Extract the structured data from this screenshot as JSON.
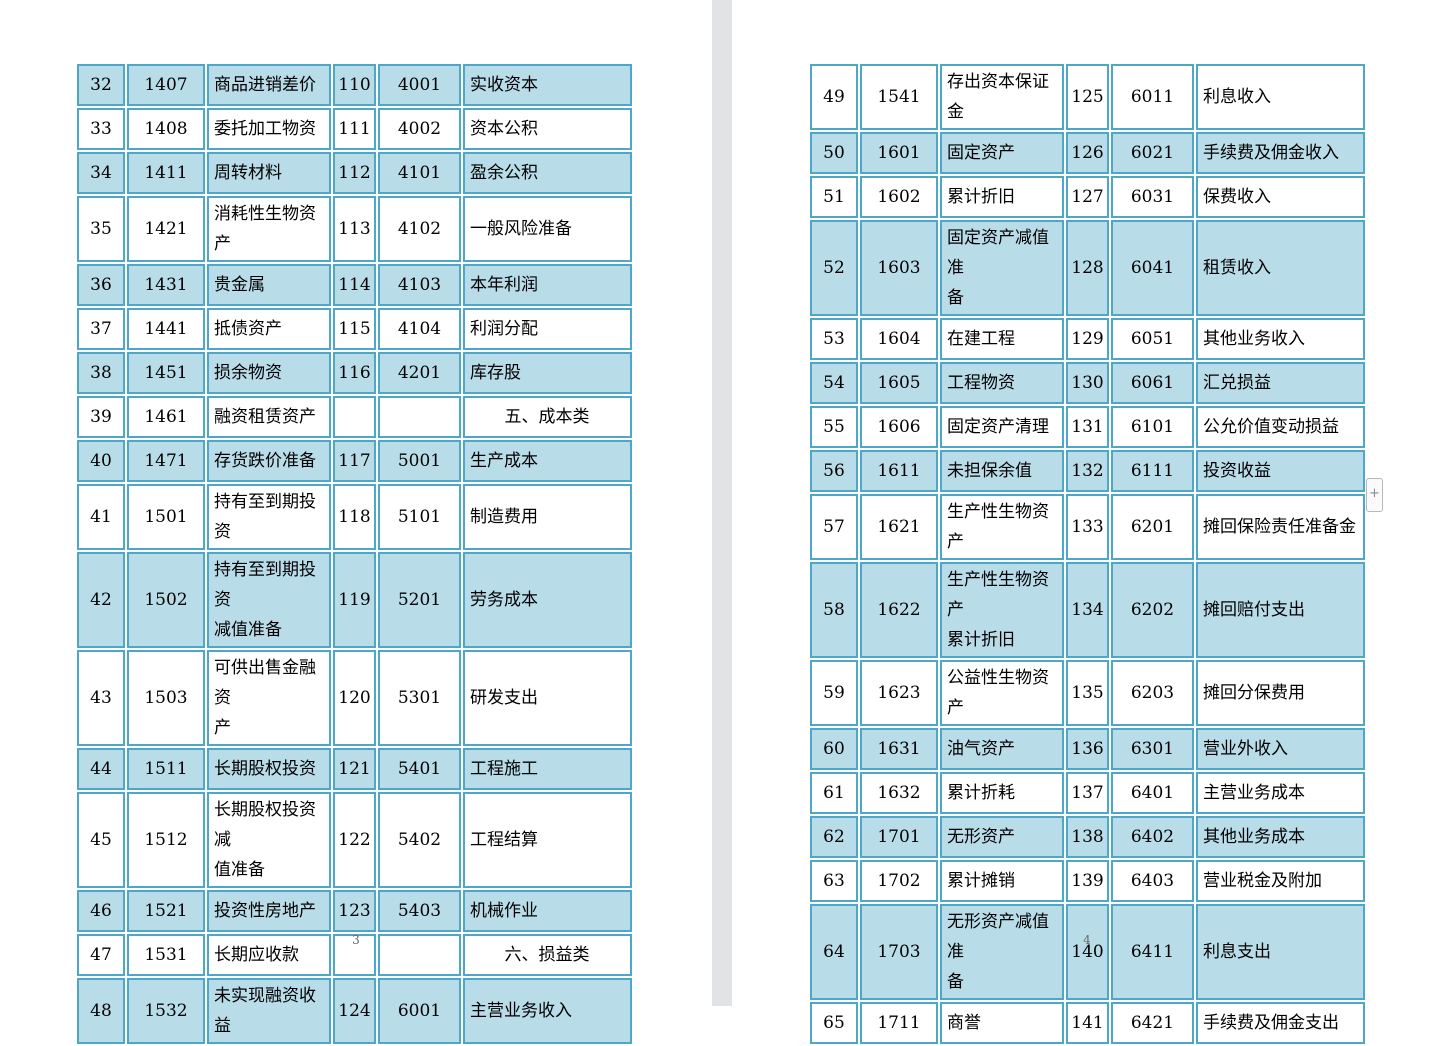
{
  "document": {
    "description_title": "会计科目表",
    "colors": {
      "row_blue": "#b9dce9",
      "border_teal": "#4da7c8",
      "page_gap_gray": "#e2e3e4"
    },
    "side_plus_label": "+",
    "pages": [
      {
        "number": "3",
        "rows": [
          {
            "shade": "blue",
            "cells": [
              "32",
              "1407",
              "商品进销差价",
              "110",
              "4001",
              "实收资本"
            ]
          },
          {
            "shade": "white",
            "cells": [
              "33",
              "1408",
              "委托加工物资",
              "111",
              "4002",
              "资本公积"
            ]
          },
          {
            "shade": "blue",
            "cells": [
              "34",
              "1411",
              "周转材料",
              "112",
              "4101",
              "盈余公积"
            ]
          },
          {
            "shade": "white",
            "cells": [
              "35",
              "1421",
              "消耗性生物资产",
              "113",
              "4102",
              "一般风险准备"
            ]
          },
          {
            "shade": "blue",
            "cells": [
              "36",
              "1431",
              "贵金属",
              "114",
              "4103",
              "本年利润"
            ]
          },
          {
            "shade": "white",
            "cells": [
              "37",
              "1441",
              "抵债资产",
              "115",
              "4104",
              "利润分配"
            ]
          },
          {
            "shade": "blue",
            "cells": [
              "38",
              "1451",
              "损余物资",
              "116",
              "4201",
              "库存股"
            ]
          },
          {
            "shade": "white",
            "category_row": true,
            "cells": [
              "39",
              "1461",
              "融资租赁资产",
              "",
              "",
              "五、成本类"
            ]
          },
          {
            "shade": "blue",
            "cells": [
              "40",
              "1471",
              "存货跌价准备",
              "117",
              "5001",
              "生产成本"
            ]
          },
          {
            "shade": "white",
            "cells": [
              "41",
              "1501",
              "持有至到期投资",
              "118",
              "5101",
              "制造费用"
            ]
          },
          {
            "shade": "blue",
            "cells": [
              "42",
              "1502",
              "持有至到期投资\n减值准备",
              "119",
              "5201",
              "劳务成本"
            ]
          },
          {
            "shade": "white",
            "cells": [
              "43",
              "1503",
              "可供出售金融资\n产",
              "120",
              "5301",
              "研发支出"
            ]
          },
          {
            "shade": "blue",
            "cells": [
              "44",
              "1511",
              "长期股权投资",
              "121",
              "5401",
              "工程施工"
            ]
          },
          {
            "shade": "white",
            "cells": [
              "45",
              "1512",
              "长期股权投资减\n值准备",
              "122",
              "5402",
              "工程结算"
            ]
          },
          {
            "shade": "blue",
            "cells": [
              "46",
              "1521",
              "投资性房地产",
              "123",
              "5403",
              "机械作业"
            ]
          },
          {
            "shade": "white",
            "category_row": true,
            "cells": [
              "47",
              "1531",
              "长期应收款",
              "",
              "",
              "六、损益类"
            ]
          },
          {
            "shade": "blue",
            "cells": [
              "48",
              "1532",
              "未实现融资收益",
              "124",
              "6001",
              "主营业务收入"
            ]
          }
        ]
      },
      {
        "number": "4",
        "rows": [
          {
            "shade": "white",
            "cells": [
              "49",
              "1541",
              "存出资本保证金",
              "125",
              "6011",
              "利息收入"
            ]
          },
          {
            "shade": "blue",
            "cells": [
              "50",
              "1601",
              "固定资产",
              "126",
              "6021",
              "手续费及佣金收入"
            ]
          },
          {
            "shade": "white",
            "cells": [
              "51",
              "1602",
              "累计折旧",
              "127",
              "6031",
              "保费收入"
            ]
          },
          {
            "shade": "blue",
            "cells": [
              "52",
              "1603",
              "固定资产减值准\n备",
              "128",
              "6041",
              "租赁收入"
            ]
          },
          {
            "shade": "white",
            "cells": [
              "53",
              "1604",
              "在建工程",
              "129",
              "6051",
              "其他业务收入"
            ]
          },
          {
            "shade": "blue",
            "cells": [
              "54",
              "1605",
              "工程物资",
              "130",
              "6061",
              "汇兑损益"
            ]
          },
          {
            "shade": "white",
            "cells": [
              "55",
              "1606",
              "固定资产清理",
              "131",
              "6101",
              "公允价值变动损益"
            ]
          },
          {
            "shade": "blue",
            "cells": [
              "56",
              "1611",
              "未担保余值",
              "132",
              "6111",
              "投资收益"
            ]
          },
          {
            "shade": "white",
            "cells": [
              "57",
              "1621",
              "生产性生物资产",
              "133",
              "6201",
              "摊回保险责任准备金"
            ]
          },
          {
            "shade": "blue",
            "cells": [
              "58",
              "1622",
              "生产性生物资产\n累计折旧",
              "134",
              "6202",
              "摊回赔付支出"
            ]
          },
          {
            "shade": "white",
            "cells": [
              "59",
              "1623",
              "公益性生物资产",
              "135",
              "6203",
              "摊回分保费用"
            ]
          },
          {
            "shade": "blue",
            "cells": [
              "60",
              "1631",
              "油气资产",
              "136",
              "6301",
              "营业外收入"
            ]
          },
          {
            "shade": "white",
            "cells": [
              "61",
              "1632",
              "累计折耗",
              "137",
              "6401",
              "主营业务成本"
            ]
          },
          {
            "shade": "blue",
            "cells": [
              "62",
              "1701",
              "无形资产",
              "138",
              "6402",
              "其他业务成本"
            ]
          },
          {
            "shade": "white",
            "cells": [
              "63",
              "1702",
              "累计摊销",
              "139",
              "6403",
              "营业税金及附加"
            ]
          },
          {
            "shade": "blue",
            "cells": [
              "64",
              "1703",
              "无形资产减值准\n备",
              "140",
              "6411",
              "利息支出"
            ]
          },
          {
            "shade": "white",
            "cells": [
              "65",
              "1711",
              "商誉",
              "141",
              "6421",
              "手续费及佣金支出"
            ]
          }
        ]
      }
    ]
  }
}
